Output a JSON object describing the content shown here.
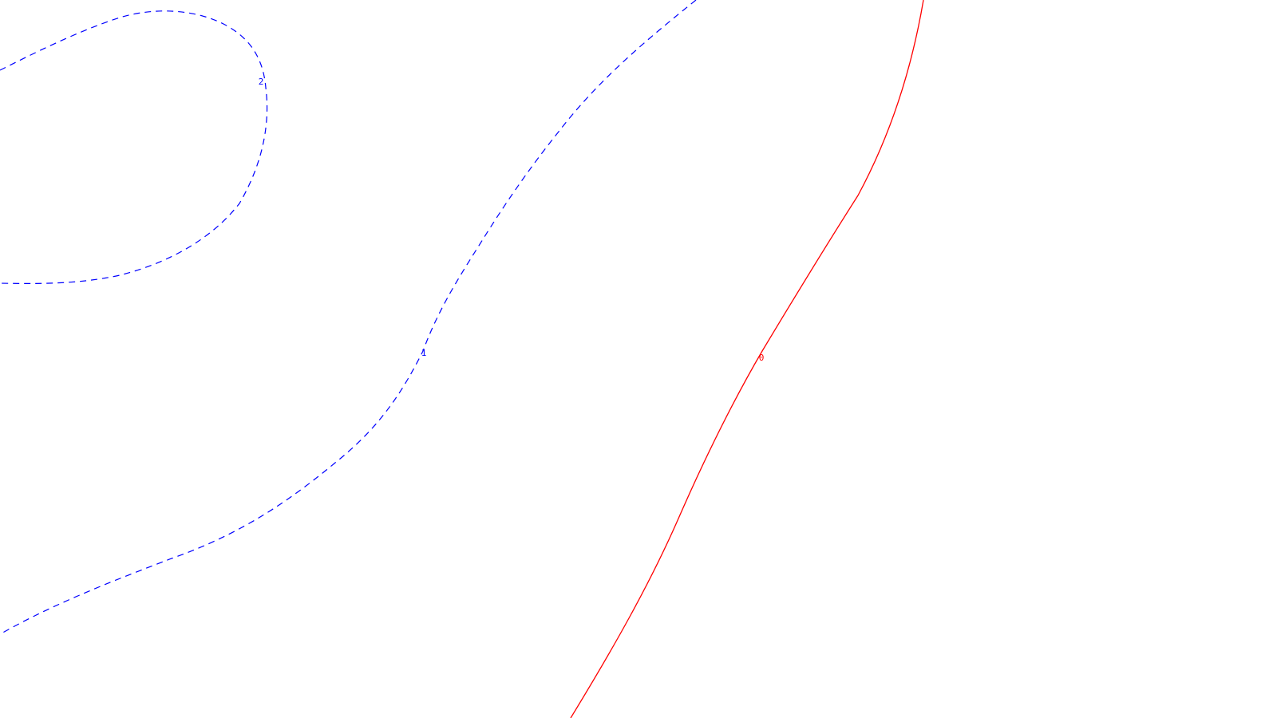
{
  "contours": [
    {
      "name": "contour-level-2",
      "label": "2",
      "style": "dashed",
      "color": "#0000ff"
    },
    {
      "name": "contour-level-1",
      "label": "1",
      "style": "dashed",
      "color": "#0000ff"
    },
    {
      "name": "contour-level-0",
      "label": "0",
      "style": "solid",
      "color": "#ff0000"
    }
  ]
}
